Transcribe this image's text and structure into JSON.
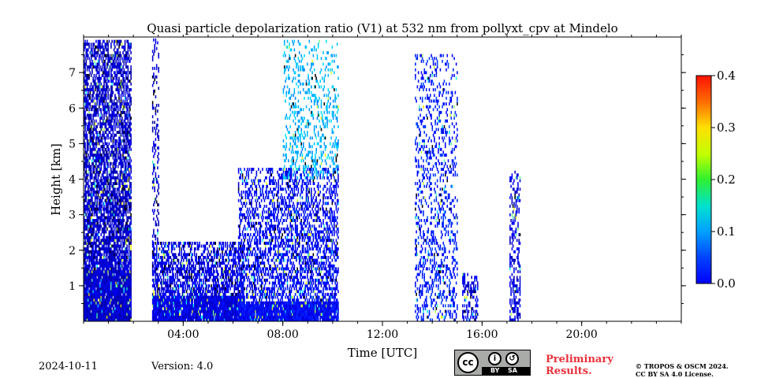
{
  "chart_data": {
    "type": "heatmap",
    "title": "Quasi particle depolarization ratio (V1) at 532 nm from pollyxt_cpv at Mindelo",
    "xlabel": "Time [UTC]",
    "ylabel": "Height [km]",
    "xlim_hours": [
      0,
      24
    ],
    "ylim_km": [
      0,
      8
    ],
    "x_ticks": [
      {
        "hour": 4,
        "label": "04:00"
      },
      {
        "hour": 8,
        "label": "08:00"
      },
      {
        "hour": 12,
        "label": "12:00"
      },
      {
        "hour": 16,
        "label": "16:00"
      },
      {
        "hour": 20,
        "label": "20:00"
      }
    ],
    "y_ticks": [
      {
        "km": 1,
        "label": "1"
      },
      {
        "km": 2,
        "label": "2"
      },
      {
        "km": 3,
        "label": "3"
      },
      {
        "km": 4,
        "label": "4"
      },
      {
        "km": 5,
        "label": "5"
      },
      {
        "km": 6,
        "label": "6"
      },
      {
        "km": 7,
        "label": "7"
      }
    ],
    "colorbar": {
      "min": 0.0,
      "max": 0.4,
      "colormap": "jet",
      "ticks": [
        {
          "value": 0.0,
          "label": "0.0"
        },
        {
          "value": 0.1,
          "label": "0.1"
        },
        {
          "value": 0.2,
          "label": "0.2"
        },
        {
          "value": 0.3,
          "label": "0.3"
        },
        {
          "value": 0.4,
          "label": "0.4"
        }
      ]
    },
    "data_regions": [
      {
        "t0": 0.0,
        "t1": 1.9,
        "h0": 0.0,
        "h1": 7.9,
        "base_value": 0.03,
        "dense_top_km": 1.4,
        "density": 0.85
      },
      {
        "t0": 2.75,
        "t1": 6.4,
        "h0": 0.0,
        "h1": 2.2,
        "base_value": 0.04,
        "dense_top_km": 0.7,
        "density": 0.75
      },
      {
        "t0": 2.75,
        "t1": 3.0,
        "h0": 2.2,
        "h1": 7.9,
        "base_value": 0.03,
        "dense_top_km": 0.0,
        "density": 0.35
      },
      {
        "t0": 6.2,
        "t1": 10.2,
        "h0": 0.0,
        "h1": 4.3,
        "base_value": 0.05,
        "dense_top_km": 0.5,
        "density": 0.55
      },
      {
        "t0": 8.0,
        "t1": 10.2,
        "h0": 4.0,
        "h1": 7.9,
        "base_value": 0.12,
        "dense_top_km": 0.0,
        "density": 0.25
      },
      {
        "t0": 13.3,
        "t1": 15.0,
        "h0": 0.0,
        "h1": 7.5,
        "base_value": 0.06,
        "dense_top_km": 0.0,
        "density": 0.3
      },
      {
        "t0": 15.2,
        "t1": 15.8,
        "h0": 0.0,
        "h1": 1.3,
        "base_value": 0.04,
        "dense_top_km": 0.0,
        "density": 0.5
      },
      {
        "t0": 17.1,
        "t1": 17.5,
        "h0": 0.0,
        "h1": 4.2,
        "base_value": 0.04,
        "dense_top_km": 0.0,
        "density": 0.5
      }
    ]
  },
  "footer": {
    "date": "2024-10-11",
    "version": "Version: 4.0",
    "cc_label": "cc",
    "cc_by": "BY",
    "cc_sa": "SA",
    "preliminary_line1": "Preliminary",
    "preliminary_line2": "Results.",
    "copyright_line1": "© TROPOS & OSCM 2024.",
    "copyright_line2": "CC BY SA 4.0 License."
  }
}
